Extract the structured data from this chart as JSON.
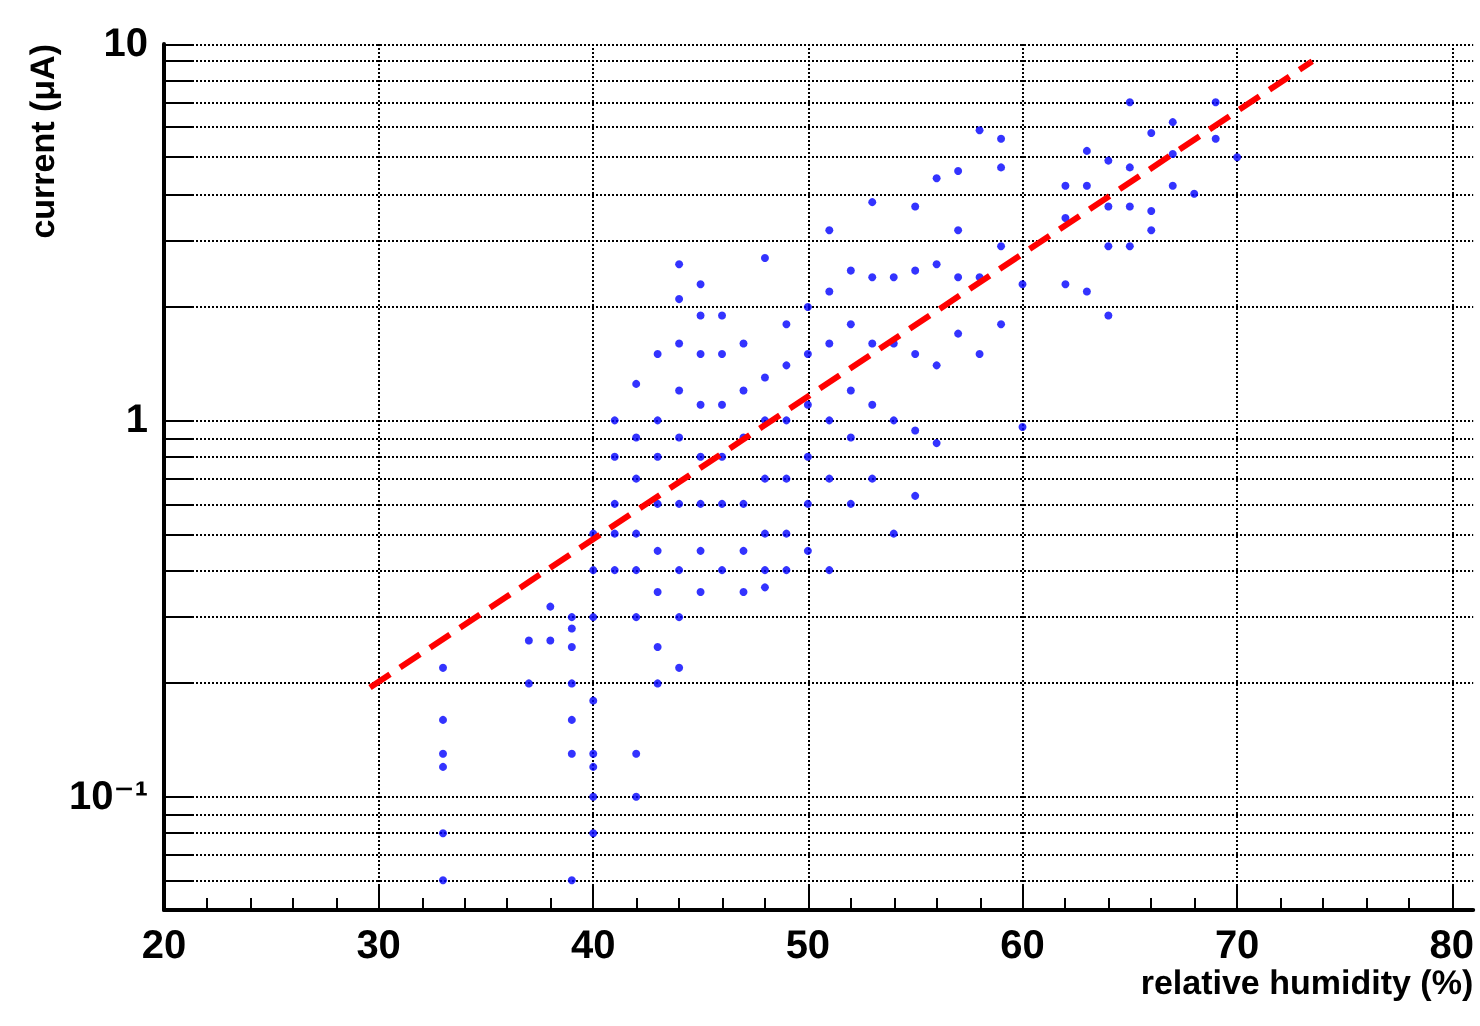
{
  "chart_data": {
    "type": "scatter",
    "xlabel": "relative humidity (%)",
    "ylabel": "current (μA)",
    "xlim": [
      20,
      81
    ],
    "xticks": [
      20,
      30,
      40,
      50,
      60,
      70,
      80
    ],
    "ylim": [
      0.05,
      10
    ],
    "log": "y",
    "grid": true,
    "yticks": [
      {
        "value": 0.05,
        "label": null
      },
      {
        "value": 0.06,
        "label": null
      },
      {
        "value": 0.07,
        "label": null
      },
      {
        "value": 0.08,
        "label": null
      },
      {
        "value": 0.09,
        "label": null
      },
      {
        "value": 0.1,
        "label": "10⁻¹"
      },
      {
        "value": 0.2,
        "label": null
      },
      {
        "value": 0.3,
        "label": null
      },
      {
        "value": 0.4,
        "label": null
      },
      {
        "value": 0.5,
        "label": null
      },
      {
        "value": 0.6,
        "label": null
      },
      {
        "value": 0.7,
        "label": null
      },
      {
        "value": 0.8,
        "label": null
      },
      {
        "value": 0.9,
        "label": null
      },
      1,
      {
        "value": 2,
        "label": null
      },
      {
        "value": 3,
        "label": null
      },
      {
        "value": 4,
        "label": null
      },
      {
        "value": 5,
        "label": null
      },
      {
        "value": 6,
        "label": null
      },
      {
        "value": 7,
        "label": null
      },
      {
        "value": 8,
        "label": null
      },
      {
        "value": 9,
        "label": null
      },
      10
    ],
    "series": [
      {
        "color": "#0000ff",
        "marker": "circle",
        "x": [
          33,
          33,
          33,
          33,
          33,
          33,
          37,
          37,
          38,
          38,
          39,
          39,
          39,
          39,
          39,
          39,
          39,
          40,
          40,
          40,
          40,
          40,
          40,
          40,
          40,
          41,
          41,
          41,
          41,
          41,
          42,
          42,
          42,
          42,
          42,
          42,
          42,
          42,
          43,
          43,
          43,
          43,
          43,
          43,
          43,
          43,
          44,
          44,
          44,
          44,
          44,
          44,
          44,
          44,
          44,
          45,
          45,
          45,
          45,
          45,
          45,
          45,
          45,
          46,
          46,
          46,
          46,
          46,
          46,
          47,
          47,
          47,
          47,
          47,
          47,
          48,
          48,
          48,
          48,
          48,
          48,
          48,
          49,
          49,
          49,
          49,
          49,
          49,
          50,
          50,
          50,
          50,
          50,
          50,
          51,
          51,
          51,
          51,
          51,
          51,
          52,
          52,
          52,
          52,
          52,
          53,
          53,
          53,
          53,
          53,
          54,
          54,
          54,
          54,
          55,
          55,
          55,
          55,
          55,
          56,
          56,
          56,
          56,
          57,
          57,
          57,
          57,
          58,
          58,
          58,
          59,
          59,
          59,
          59,
          60,
          60,
          62,
          62,
          62,
          63,
          63,
          63,
          64,
          64,
          64,
          64,
          65,
          65,
          65,
          65,
          66,
          66,
          66,
          67,
          67,
          67,
          68,
          69,
          69,
          70
        ],
        "values": [
          0.22,
          0.16,
          0.13,
          0.12,
          0.08,
          0.06,
          0.26,
          0.2,
          0.32,
          0.26,
          0.3,
          0.28,
          0.25,
          0.2,
          0.16,
          0.13,
          0.06,
          0.5,
          0.4,
          0.3,
          0.18,
          0.13,
          0.12,
          0.1,
          0.08,
          1.0,
          0.8,
          0.6,
          0.5,
          0.4,
          1.25,
          0.9,
          0.7,
          0.5,
          0.4,
          0.3,
          0.13,
          0.1,
          1.5,
          1.0,
          0.8,
          0.6,
          0.45,
          0.35,
          0.25,
          0.2,
          2.6,
          2.1,
          1.6,
          1.2,
          0.9,
          0.6,
          0.4,
          0.3,
          0.22,
          2.3,
          1.9,
          1.5,
          1.1,
          0.8,
          0.6,
          0.45,
          0.35,
          1.9,
          1.5,
          1.1,
          0.8,
          0.6,
          0.4,
          1.6,
          1.2,
          0.9,
          0.6,
          0.45,
          0.35,
          2.7,
          1.3,
          1.0,
          0.7,
          0.5,
          0.4,
          0.36,
          1.8,
          1.4,
          1.0,
          0.7,
          0.5,
          0.4,
          2.0,
          1.5,
          1.1,
          0.8,
          0.6,
          0.45,
          3.2,
          2.2,
          1.6,
          1.0,
          0.7,
          0.4,
          2.5,
          1.8,
          1.2,
          0.9,
          0.6,
          3.8,
          2.4,
          1.6,
          1.1,
          0.7,
          2.4,
          1.6,
          1.0,
          0.5,
          3.7,
          2.5,
          1.5,
          0.94,
          0.63,
          4.4,
          2.6,
          1.4,
          0.87,
          4.6,
          3.2,
          2.4,
          1.7,
          5.9,
          2.4,
          1.5,
          5.6,
          4.7,
          2.9,
          1.8,
          2.3,
          0.96,
          4.2,
          3.45,
          2.3,
          5.2,
          4.2,
          2.2,
          4.9,
          3.7,
          2.9,
          1.9,
          7.0,
          4.7,
          3.7,
          2.9,
          5.8,
          3.6,
          3.2,
          6.2,
          5.1,
          4.2,
          4.0,
          7.0,
          5.6,
          5.0
        ]
      },
      {
        "type": "line",
        "color": "#ff0000",
        "marker": "none",
        "line_style": "dashed",
        "x": [
          29.6,
          73.5
        ],
        "values": [
          0.195,
          9
        ]
      }
    ]
  }
}
